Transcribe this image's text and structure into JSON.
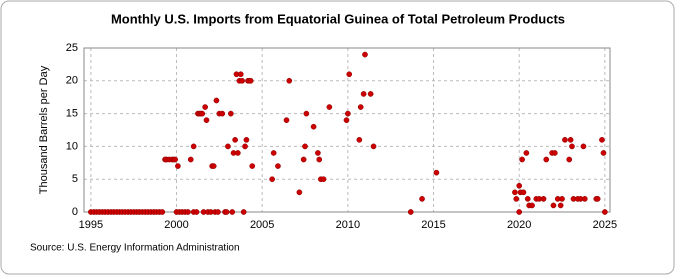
{
  "chart_data": {
    "type": "scatter",
    "title": "Monthly U.S. Imports from Equatorial Guinea of Total Petroleum Products",
    "y_label": "Thousand Barrels per Day",
    "source": "Source: U.S. Energy Information Administration",
    "color": "#cc0000",
    "x": [
      1995.0,
      1995.17,
      1995.33,
      1995.5,
      1995.67,
      1995.83,
      1996.0,
      1996.17,
      1996.33,
      1996.5,
      1996.67,
      1996.83,
      1997.0,
      1997.17,
      1997.33,
      1997.5,
      1997.67,
      1997.83,
      1998.0,
      1998.17,
      1998.33,
      1998.5,
      1998.67,
      1998.83,
      1999.0,
      1999.17,
      1999.33,
      1999.42,
      1999.58,
      1999.75,
      1999.83,
      1999.92,
      2000.0,
      2000.08,
      2000.17,
      2000.33,
      2000.5,
      2000.67,
      2000.83,
      2001.0,
      2001.0,
      2001.17,
      2001.25,
      2001.33,
      2001.42,
      2001.5,
      2001.58,
      2001.67,
      2001.75,
      2001.83,
      2002.0,
      2002.08,
      2002.17,
      2002.25,
      2002.33,
      2002.42,
      2002.5,
      2002.67,
      2002.83,
      2002.92,
      2003.0,
      2003.17,
      2003.25,
      2003.33,
      2003.42,
      2003.5,
      2003.58,
      2003.67,
      2003.75,
      2003.83,
      2003.92,
      2004.0,
      2004.08,
      2004.17,
      2004.25,
      2004.33,
      2004.42,
      2005.58,
      2005.67,
      2005.92,
      2006.42,
      2006.58,
      2007.17,
      2007.42,
      2007.5,
      2007.58,
      2008.0,
      2008.25,
      2008.33,
      2008.42,
      2008.58,
      2008.92,
      2009.92,
      2010.0,
      2010.08,
      2010.67,
      2010.75,
      2010.92,
      2011.0,
      2011.33,
      2011.5,
      2013.67,
      2014.33,
      2015.17,
      2019.75,
      2019.83,
      2020.0,
      2020.0,
      2020.08,
      2020.17,
      2020.25,
      2020.42,
      2020.5,
      2020.58,
      2020.75,
      2021.0,
      2021.17,
      2021.42,
      2021.58,
      2021.92,
      2022.0,
      2022.08,
      2022.25,
      2022.42,
      2022.5,
      2022.67,
      2022.92,
      2023.0,
      2023.08,
      2023.17,
      2023.42,
      2023.58,
      2023.75,
      2023.83,
      2024.5,
      2024.58,
      2024.83,
      2024.92,
      2025.0
    ],
    "values": [
      0,
      0,
      0,
      0,
      0,
      0,
      0,
      0,
      0,
      0,
      0,
      0,
      0,
      0,
      0,
      0,
      0,
      0,
      0,
      0,
      0,
      0,
      0,
      0,
      0,
      0,
      8,
      8,
      8,
      8,
      8,
      8,
      0,
      7,
      0,
      0,
      0,
      0,
      8,
      0,
      10,
      0,
      15,
      15,
      15,
      15,
      0,
      16,
      14,
      0,
      0,
      7,
      7,
      0,
      17,
      0,
      15,
      15,
      0,
      0,
      10,
      15,
      0,
      9,
      11,
      21,
      9,
      20,
      21,
      20,
      0,
      10,
      11,
      20,
      20,
      20,
      7,
      5,
      9,
      7,
      14,
      20,
      3,
      8,
      10,
      15,
      13,
      9,
      8,
      5,
      5,
      16,
      14,
      15,
      21,
      11,
      16,
      18,
      24,
      18,
      10,
      0,
      2,
      6,
      3,
      2,
      4,
      0,
      3,
      8,
      3,
      9,
      2,
      1,
      1,
      2,
      2,
      2,
      8,
      9,
      1,
      9,
      2,
      1,
      2,
      11,
      8,
      11,
      10,
      2,
      2,
      2,
      10,
      2,
      2,
      2,
      11,
      9,
      0
    ],
    "xlim": [
      1994.6,
      2025.3
    ],
    "ylim": [
      0,
      25
    ],
    "xticks": [
      1995,
      2000,
      2005,
      2010,
      2015,
      2020,
      2025
    ],
    "yticks": [
      0,
      5,
      10,
      15,
      20,
      25
    ],
    "grid": true
  }
}
